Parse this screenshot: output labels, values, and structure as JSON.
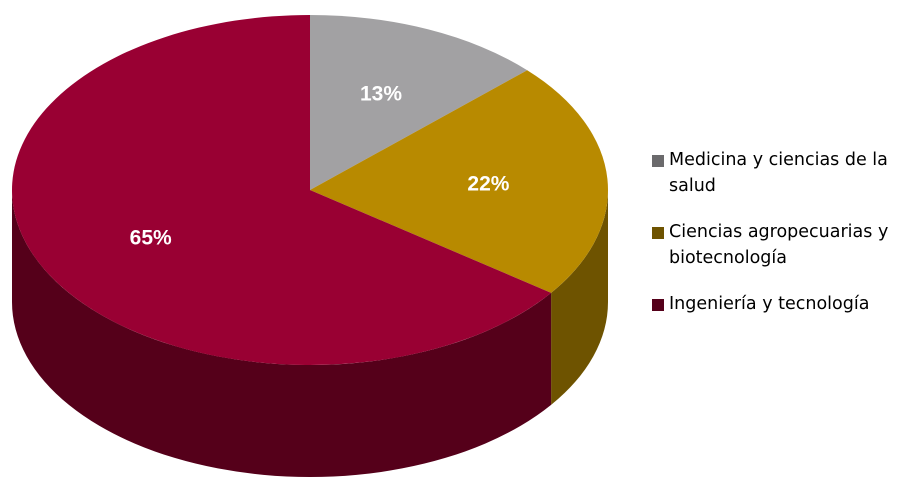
{
  "chart_data": {
    "type": "pie",
    "title": "",
    "slices": [
      {
        "label": "Medicina y ciencias de la salud",
        "value": 13,
        "display": "13%",
        "color": "#a2a1a3",
        "side_color": "#6b6a6c"
      },
      {
        "label": "Ciencias agropecuarias y biotecnología",
        "value": 22,
        "display": "22%",
        "color": "#b88a00",
        "side_color": "#6e5300"
      },
      {
        "label": "Ingeniería y tecnología",
        "value": 65,
        "display": "65%",
        "color": "#990033",
        "side_color": "#55001a"
      }
    ],
    "legend_position": "right",
    "style": "3d"
  }
}
